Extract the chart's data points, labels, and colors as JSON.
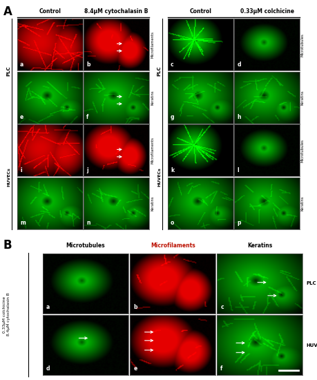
{
  "panel_A_label": "A",
  "panel_B_label": "B",
  "bg_color": "#d8d4d0",
  "cell_bg": "#000000",
  "section_A": {
    "left_block": {
      "col_labels": [
        "Control",
        "8.4μM cytochalasin B"
      ],
      "row_labels_right": [
        "Microfilaments",
        "Keratins",
        "Microfilaments",
        "Keratins"
      ],
      "side_labels": [
        "PLC",
        "HUVECs"
      ],
      "panels": [
        {
          "id": "a",
          "color": "red",
          "row": 0,
          "col": 0
        },
        {
          "id": "b",
          "color": "red",
          "row": 0,
          "col": 1,
          "arrows": true
        },
        {
          "id": "e",
          "color": "green",
          "row": 1,
          "col": 0
        },
        {
          "id": "f",
          "color": "green",
          "row": 1,
          "col": 1,
          "arrows": true
        },
        {
          "id": "i",
          "color": "red",
          "row": 2,
          "col": 0
        },
        {
          "id": "j",
          "color": "red",
          "row": 2,
          "col": 1,
          "arrows": true
        },
        {
          "id": "m",
          "color": "green",
          "row": 3,
          "col": 0
        },
        {
          "id": "n",
          "color": "green",
          "row": 3,
          "col": 1
        }
      ]
    },
    "right_block": {
      "col_labels": [
        "Control",
        "0.33μM colchicine"
      ],
      "row_labels_right": [
        "Microtubules",
        "Keratins",
        "Microtubules",
        "Keratins"
      ],
      "side_labels": [
        "PLC",
        "HUVECs"
      ],
      "panels": [
        {
          "id": "c",
          "color": "green",
          "row": 0,
          "col": 0
        },
        {
          "id": "d",
          "color": "green",
          "row": 0,
          "col": 1
        },
        {
          "id": "g",
          "color": "green",
          "row": 1,
          "col": 0
        },
        {
          "id": "h",
          "color": "green",
          "row": 1,
          "col": 1
        },
        {
          "id": "k",
          "color": "green",
          "row": 2,
          "col": 0
        },
        {
          "id": "l",
          "color": "green",
          "row": 2,
          "col": 1
        },
        {
          "id": "o",
          "color": "green",
          "row": 3,
          "col": 0
        },
        {
          "id": "p",
          "color": "green",
          "row": 3,
          "col": 1
        }
      ]
    }
  },
  "section_B": {
    "col_labels": [
      "Microtubules",
      "Microfilaments",
      "Keratins"
    ],
    "col_label_colors": [
      "#000000",
      "#bb1100",
      "#000000"
    ],
    "row_labels": [
      "PLC",
      "HUVECs"
    ],
    "y_label_line1": "0.33μM colchicine",
    "y_label_line2": "8.4μM cytochalasin B",
    "panels": [
      {
        "id": "a",
        "color": "green",
        "row": 0,
        "col": 0
      },
      {
        "id": "b",
        "color": "red",
        "row": 0,
        "col": 1
      },
      {
        "id": "c",
        "color": "green",
        "row": 0,
        "col": 2,
        "arrows": [
          [
            60,
            18
          ],
          [
            60,
            32
          ]
        ]
      },
      {
        "id": "d",
        "color": "green",
        "row": 1,
        "col": 0,
        "arrows": [
          [
            50,
            42
          ],
          [
            60,
            42
          ]
        ]
      },
      {
        "id": "e",
        "color": "red",
        "row": 1,
        "col": 1,
        "arrows": [
          [
            32,
            38
          ],
          [
            32,
            50
          ],
          [
            32,
            62
          ]
        ]
      },
      {
        "id": "f",
        "color": "green",
        "row": 1,
        "col": 2,
        "arrows": [
          [
            38,
            32
          ],
          [
            38,
            44
          ]
        ],
        "scalebar": true
      }
    ]
  }
}
